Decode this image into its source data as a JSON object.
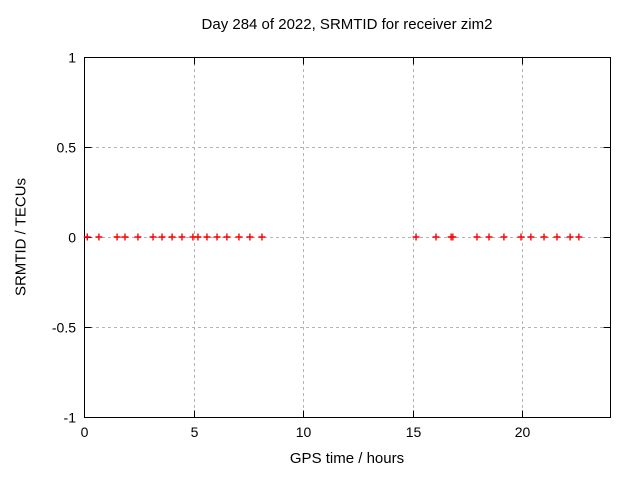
{
  "chart_data": {
    "type": "scatter",
    "title": "Day 284 of 2022, SRMTID for receiver zim2",
    "xlabel": "GPS time / hours",
    "ylabel": "SRMTID / TECUs",
    "xlim": [
      0,
      24
    ],
    "ylim": [
      -1,
      1
    ],
    "xticks": [
      0,
      5,
      10,
      15,
      20
    ],
    "yticks": [
      1,
      0.5,
      0,
      -0.5,
      -1
    ],
    "grid": true,
    "legend_position": "none",
    "marker": "plus",
    "colors": {
      "marker": "#ff0000",
      "grid": "#b4b4b4",
      "axis": "#000000",
      "background": "#ffffff"
    },
    "series": [
      {
        "name": "SRMTID",
        "x": [
          0.15,
          0.68,
          1.51,
          1.87,
          2.46,
          3.15,
          3.56,
          4.02,
          4.47,
          4.97,
          5.2,
          5.61,
          6.07,
          6.52,
          7.07,
          7.57,
          8.12,
          15.15,
          16.06,
          16.75,
          16.83,
          17.93,
          18.48,
          19.16,
          19.94,
          20.39,
          20.99,
          21.58,
          22.18,
          22.58
        ],
        "y": [
          0,
          0,
          0,
          0,
          0,
          0,
          0,
          0,
          0,
          0,
          0,
          0,
          0,
          0,
          0,
          0,
          0,
          0,
          0,
          0,
          0,
          0,
          0,
          0,
          0,
          0,
          0,
          0,
          0,
          0
        ]
      }
    ]
  }
}
